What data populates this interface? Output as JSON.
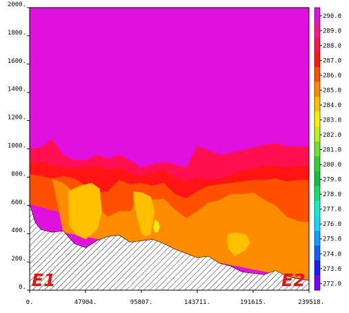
{
  "chart_data": {
    "type": "contour",
    "title": "",
    "xlabel": "",
    "ylabel": "",
    "xlim": [
      0,
      239518
    ],
    "ylim": [
      0,
      2000
    ],
    "x_tick_labels": [
      "0.",
      "47904.",
      "95807.",
      "143711.",
      "191615.",
      "239518."
    ],
    "y_tick_labels": [
      "0.",
      "200.",
      "400.",
      "600.",
      "800.",
      "1000.",
      "1200.",
      "1400.",
      "1600.",
      "1800.",
      "2000."
    ],
    "end_labels": {
      "left": "E1",
      "right": "E2"
    },
    "colorbar": {
      "levels": [
        "272.0",
        "273.0",
        "274.0",
        "275.0",
        "276.0",
        "277.0",
        "278.0",
        "279.0",
        "280.0",
        "281.0",
        "282.0",
        "283.0",
        "284.0",
        "285.0",
        "286.0",
        "287.0",
        "288.0",
        "289.0",
        "290.0"
      ],
      "colors": [
        "#7a00ff",
        "#1a1aff",
        "#1060ff",
        "#10a0ff",
        "#10d8ff",
        "#10f0c8",
        "#10e070",
        "#10c040",
        "#30d030",
        "#70e030",
        "#b8f020",
        "#f8f000",
        "#ffc000",
        "#ff8c00",
        "#ff5000",
        "#ff1414",
        "#ff1050",
        "#ff1490",
        "#e010e0"
      ]
    },
    "terrain": {
      "x": [
        0,
        4800,
        9600,
        19200,
        28800,
        38400,
        48000,
        57600,
        67000,
        76600,
        86200,
        95800,
        105400,
        115000,
        124600,
        134200,
        143700,
        153300,
        162900,
        172500,
        182100,
        191600,
        201200,
        210800,
        220400,
        230000,
        239518
      ],
      "y": [
        610,
        480,
        430,
        410,
        420,
        330,
        300,
        350,
        380,
        390,
        340,
        350,
        360,
        330,
        290,
        260,
        230,
        240,
        190,
        170,
        130,
        120,
        110,
        140,
        100,
        80,
        70
      ]
    },
    "regions": [
      {
        "level": "288.0",
        "outline": [
          [
            0,
            610
          ],
          [
            0,
            1000
          ],
          [
            9600,
            1010
          ],
          [
            19200,
            1070
          ],
          [
            28800,
            960
          ],
          [
            38400,
            920
          ],
          [
            48000,
            920
          ],
          [
            57600,
            960
          ],
          [
            67000,
            930
          ],
          [
            76600,
            960
          ],
          [
            86200,
            920
          ],
          [
            95800,
            870
          ],
          [
            105400,
            890
          ],
          [
            115000,
            910
          ],
          [
            124600,
            890
          ],
          [
            134200,
            870
          ],
          [
            143700,
            1020
          ],
          [
            153300,
            990
          ],
          [
            162900,
            960
          ],
          [
            172500,
            970
          ],
          [
            182100,
            990
          ],
          [
            191600,
            1010
          ],
          [
            201200,
            1030
          ],
          [
            210800,
            1040
          ],
          [
            220400,
            1020
          ],
          [
            230000,
            1020
          ],
          [
            239518,
            1020
          ],
          [
            239518,
            70
          ]
        ]
      },
      {
        "level": "287.0",
        "outline": [
          [
            0,
            610
          ],
          [
            0,
            900
          ],
          [
            9600,
            910
          ],
          [
            19200,
            880
          ],
          [
            28800,
            870
          ],
          [
            38400,
            860
          ],
          [
            48000,
            870
          ],
          [
            57600,
            880
          ],
          [
            67000,
            850
          ],
          [
            76600,
            870
          ],
          [
            86200,
            830
          ],
          [
            95800,
            810
          ],
          [
            105400,
            830
          ],
          [
            115000,
            850
          ],
          [
            124600,
            800
          ],
          [
            134200,
            770
          ],
          [
            143700,
            800
          ],
          [
            153300,
            780
          ],
          [
            162900,
            790
          ],
          [
            172500,
            820
          ],
          [
            182100,
            850
          ],
          [
            191600,
            860
          ],
          [
            201200,
            880
          ],
          [
            210800,
            880
          ],
          [
            220400,
            870
          ],
          [
            230000,
            880
          ],
          [
            239518,
            880
          ],
          [
            239518,
            70
          ]
        ]
      },
      {
        "level": "286.0",
        "outline": [
          [
            0,
            610
          ],
          [
            0,
            820
          ],
          [
            9600,
            810
          ],
          [
            19200,
            790
          ],
          [
            28800,
            810
          ],
          [
            38400,
            790
          ],
          [
            48000,
            740
          ],
          [
            57600,
            690
          ],
          [
            67000,
            700
          ],
          [
            76600,
            780
          ],
          [
            86200,
            750
          ],
          [
            95800,
            760
          ],
          [
            105400,
            740
          ],
          [
            115000,
            760
          ],
          [
            124600,
            680
          ],
          [
            134200,
            650
          ],
          [
            143700,
            700
          ],
          [
            153300,
            740
          ],
          [
            162900,
            750
          ],
          [
            172500,
            760
          ],
          [
            182100,
            770
          ],
          [
            191600,
            780
          ],
          [
            201200,
            780
          ],
          [
            210800,
            790
          ],
          [
            220400,
            770
          ],
          [
            230000,
            780
          ],
          [
            239518,
            780
          ],
          [
            239518,
            70
          ]
        ]
      },
      {
        "level": "285.0",
        "outline": [
          [
            19200,
            790
          ],
          [
            28800,
            760
          ],
          [
            38400,
            690
          ],
          [
            48000,
            640
          ],
          [
            57600,
            590
          ],
          [
            67000,
            520
          ],
          [
            76600,
            560
          ],
          [
            86200,
            560
          ],
          [
            95800,
            690
          ],
          [
            105400,
            640
          ],
          [
            115000,
            650
          ],
          [
            124600,
            570
          ],
          [
            134200,
            510
          ],
          [
            143700,
            560
          ],
          [
            153300,
            620
          ],
          [
            162900,
            640
          ],
          [
            172500,
            680
          ],
          [
            182100,
            680
          ],
          [
            191600,
            690
          ],
          [
            201200,
            640
          ],
          [
            210800,
            600
          ],
          [
            220400,
            520
          ],
          [
            230000,
            490
          ],
          [
            239518,
            480
          ],
          [
            239518,
            70
          ],
          [
            28800,
            410
          ]
        ]
      },
      {
        "level": "284.0",
        "outline": [
          [
            33000,
            700
          ],
          [
            43000,
            740
          ],
          [
            53000,
            760
          ],
          [
            60000,
            720
          ],
          [
            62000,
            560
          ],
          [
            58000,
            430
          ],
          [
            48000,
            360
          ],
          [
            40000,
            390
          ],
          [
            34000,
            460
          ]
        ]
      },
      {
        "level": "284.0",
        "outline": [
          [
            89000,
            700
          ],
          [
            97000,
            690
          ],
          [
            104000,
            660
          ],
          [
            107000,
            560
          ],
          [
            104000,
            400
          ],
          [
            100000,
            380
          ],
          [
            96000,
            400
          ],
          [
            92000,
            520
          ],
          [
            89000,
            640
          ]
        ]
      },
      {
        "level": "284.0",
        "outline": [
          [
            170000,
            400
          ],
          [
            178000,
            410
          ],
          [
            186000,
            390
          ],
          [
            189000,
            340
          ],
          [
            186000,
            290
          ],
          [
            176000,
            240
          ],
          [
            170000,
            300
          ],
          [
            169000,
            360
          ]
        ]
      },
      {
        "level": "283.0",
        "outline": [
          [
            107500,
            500
          ],
          [
            110500,
            480
          ],
          [
            111500,
            450
          ],
          [
            110000,
            410
          ],
          [
            107000,
            410
          ],
          [
            106000,
            450
          ]
        ]
      }
    ]
  }
}
